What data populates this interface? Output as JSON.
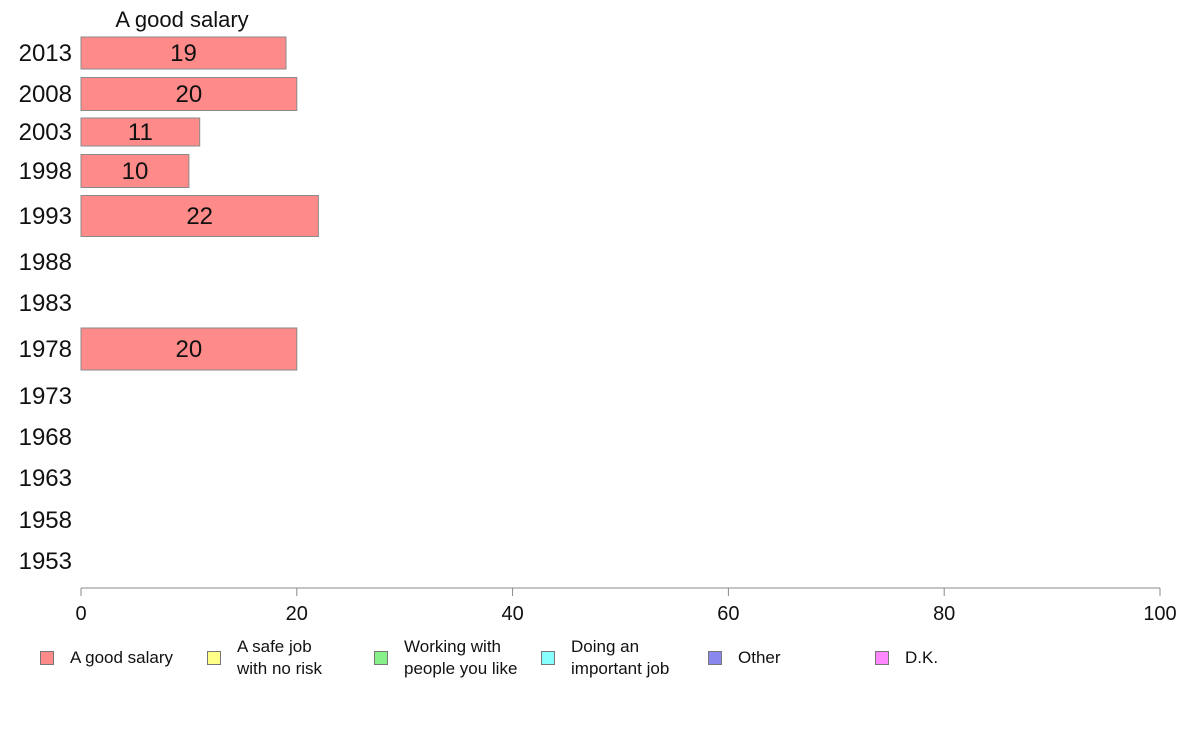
{
  "chart_data": {
    "type": "bar",
    "orientation": "horizontal",
    "title": "A good salary",
    "categories": [
      "2013",
      "2008",
      "2003",
      "1998",
      "1993",
      "1988",
      "1983",
      "1978",
      "1973",
      "1968",
      "1963",
      "1958",
      "1953"
    ],
    "series": [
      {
        "name": "A good salary",
        "color": "#ff8a8a",
        "values": [
          19,
          20,
          11,
          10,
          22,
          null,
          null,
          20,
          null,
          null,
          null,
          null,
          null
        ],
        "labels": [
          "19",
          "20",
          "11",
          "10",
          "22",
          "",
          "",
          "20",
          "",
          "",
          "",
          "",
          ""
        ]
      }
    ],
    "xlim": [
      0,
      100
    ],
    "xticks": [
      "0",
      "20",
      "40",
      "60",
      "80",
      "100"
    ],
    "grid": false,
    "legend_position": "bottom"
  },
  "legend": [
    {
      "label": "A good salary",
      "color": "#ff8a8a"
    },
    {
      "label": "A safe job\nwith no risk",
      "color": "#ffff88"
    },
    {
      "label": "Working with\npeople you like",
      "color": "#88f088"
    },
    {
      "label": "Doing an\nimportant job",
      "color": "#88ffff"
    },
    {
      "label": "Other",
      "color": "#8888ee"
    },
    {
      "label": "D.K.",
      "color": "#ff88ff"
    }
  ]
}
